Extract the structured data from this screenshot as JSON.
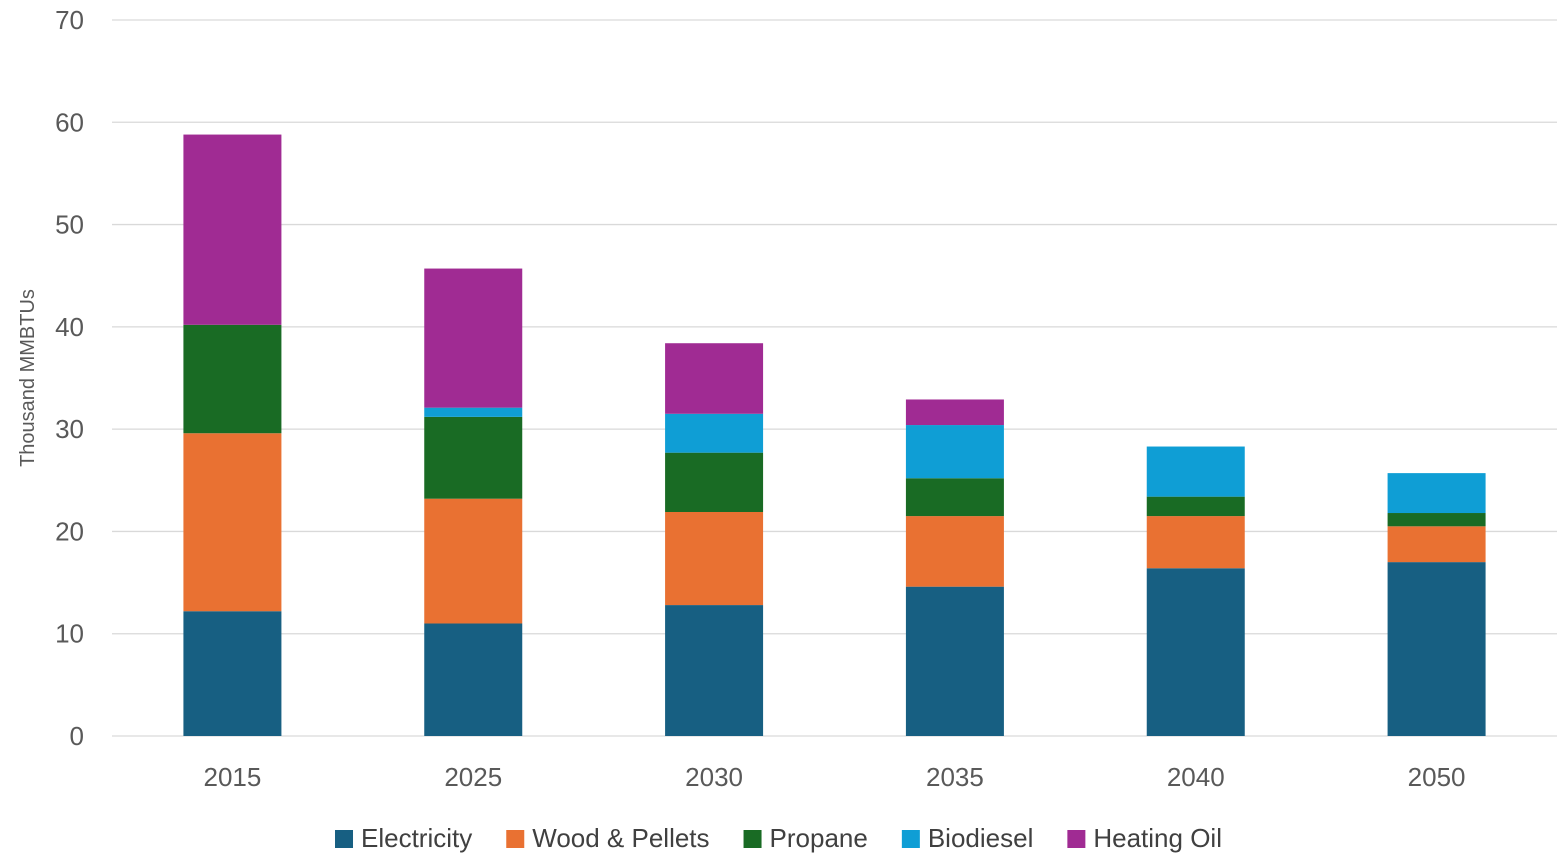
{
  "chart_data": {
    "type": "bar",
    "stacked": true,
    "categories": [
      "2015",
      "2025",
      "2030",
      "2035",
      "2040",
      "2050"
    ],
    "series": [
      {
        "name": "Electricity",
        "color": "#175f82",
        "values": [
          12.2,
          11.0,
          12.8,
          14.6,
          16.4,
          17.0
        ]
      },
      {
        "name": "Wood & Pellets",
        "color": "#e97132",
        "values": [
          17.4,
          12.2,
          9.1,
          6.9,
          5.1,
          3.5
        ]
      },
      {
        "name": "Propane",
        "color": "#196b24",
        "values": [
          10.6,
          8.0,
          5.8,
          3.7,
          1.9,
          1.3
        ]
      },
      {
        "name": "Biodiesel",
        "color": "#0f9ed5",
        "values": [
          0.0,
          0.9,
          3.8,
          5.2,
          4.9,
          3.9
        ]
      },
      {
        "name": "Heating Oil",
        "color": "#a02b93",
        "values": [
          18.6,
          13.6,
          6.9,
          2.5,
          0.0,
          0.0
        ]
      }
    ],
    "xlabel": "",
    "ylabel": "Thousand MMBTUs",
    "ylim": [
      0,
      70
    ],
    "yticks": [
      "0",
      "10",
      "20",
      "30",
      "40",
      "50",
      "60",
      "70"
    ],
    "grid": true,
    "legend_position": "bottom"
  }
}
